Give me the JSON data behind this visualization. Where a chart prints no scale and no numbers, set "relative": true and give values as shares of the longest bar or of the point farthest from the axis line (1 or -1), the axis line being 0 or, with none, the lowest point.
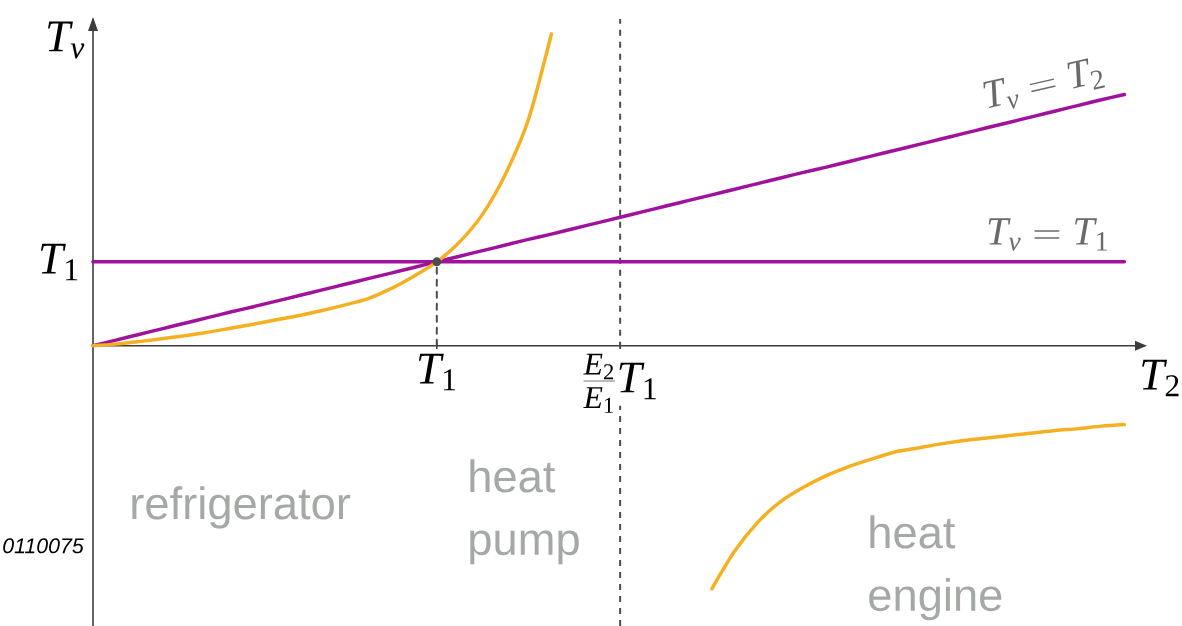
{
  "chart_data": {
    "type": "line",
    "relative": true,
    "xlabel": "T_2",
    "ylabel": "T_v",
    "categories": [
      null,
      null,
      null,
      null,
      null,
      null,
      null,
      null,
      null,
      null,
      null,
      null,
      null,
      null,
      null,
      "T_1",
      null,
      null,
      null,
      null,
      null,
      null,
      null,
      "\\frac{E_2}{E_1}T_1",
      null,
      null,
      null,
      null,
      null,
      null,
      null,
      null,
      null,
      null,
      null,
      null,
      null,
      null,
      null,
      null,
      null,
      null,
      null,
      null,
      null,
      null
    ],
    "series": [
      {
        "name": "T_v = T_2",
        "color": "#a0119c",
        "values": [
          0,
          0.018,
          0.036,
          0.054,
          0.072,
          0.09,
          0.108,
          0.125,
          0.143,
          0.161,
          0.179,
          0.197,
          0.215,
          0.233,
          0.251,
          0.269,
          0.287,
          0.305,
          0.323,
          0.341,
          0.358,
          0.376,
          0.394,
          0.412,
          0.43,
          0.448,
          0.466,
          0.484,
          0.502,
          0.52,
          0.538,
          0.556,
          0.573,
          0.591,
          0.609,
          0.627,
          0.645,
          0.663,
          0.681,
          0.699,
          0.717,
          0.735,
          0.753,
          0.771,
          0.789,
          0.806
        ]
      },
      {
        "name": "T_v = T_1",
        "color": "#a0119c",
        "values": [
          0.269,
          0.269,
          0.269,
          0.269,
          0.269,
          0.269,
          0.269,
          0.269,
          0.269,
          0.269,
          0.269,
          0.269,
          0.269,
          0.269,
          0.269,
          0.269,
          0.269,
          0.269,
          0.269,
          0.269,
          0.269,
          0.269,
          0.269,
          0.269,
          0.269,
          0.269,
          0.269,
          0.269,
          0.269,
          0.269,
          0.269,
          0.269,
          0.269,
          0.269,
          0.269,
          0.269,
          0.269,
          0.269,
          0.269,
          0.269,
          0.269,
          0.269,
          0.269,
          0.269,
          0.269,
          0.269
        ]
      },
      {
        "color": "#f5b021",
        "values": [
          0,
          0.005,
          0.013,
          0.022,
          0.032,
          0.043,
          0.056,
          0.069,
          0.083,
          0.097,
          0.113,
          0.131,
          0.151,
          0.183,
          0.223,
          0.269,
          0.333,
          0.422,
          0.551,
          0.726,
          1,
          null,
          null,
          null,
          null,
          null,
          null,
          -0.78,
          -0.659,
          -0.567,
          -0.5,
          -0.454,
          -0.417,
          -0.387,
          -0.363,
          -0.341,
          -0.328,
          -0.315,
          -0.304,
          -0.296,
          -0.288,
          -0.28,
          -0.272,
          -0.266,
          -0.258,
          -0.253
        ]
      },
      {
        "type": "lollipop",
        "marker": "circle",
        "line_style": "dashed",
        "color": "#4d4d4d",
        "values": [
          null,
          null,
          null,
          null,
          null,
          null,
          null,
          null,
          null,
          null,
          null,
          null,
          null,
          null,
          null,
          0.269,
          null,
          null,
          null,
          null,
          null,
          null,
          null,
          null,
          null,
          null,
          null,
          null,
          null,
          null,
          null,
          null,
          null,
          null,
          null,
          null,
          null,
          null,
          null,
          null,
          null,
          null,
          null,
          null,
          null,
          null
        ]
      }
    ],
    "ref_lines": [
      {
        "axis": "x",
        "value": "\\frac{E_2}{E_1}T_1",
        "color": "#4d4d4d",
        "line_style": "dashed"
      }
    ],
    "annotations": [
      "T_1",
      "refrigerator",
      "heat pump",
      "heat engine",
      "0110075"
    ]
  }
}
